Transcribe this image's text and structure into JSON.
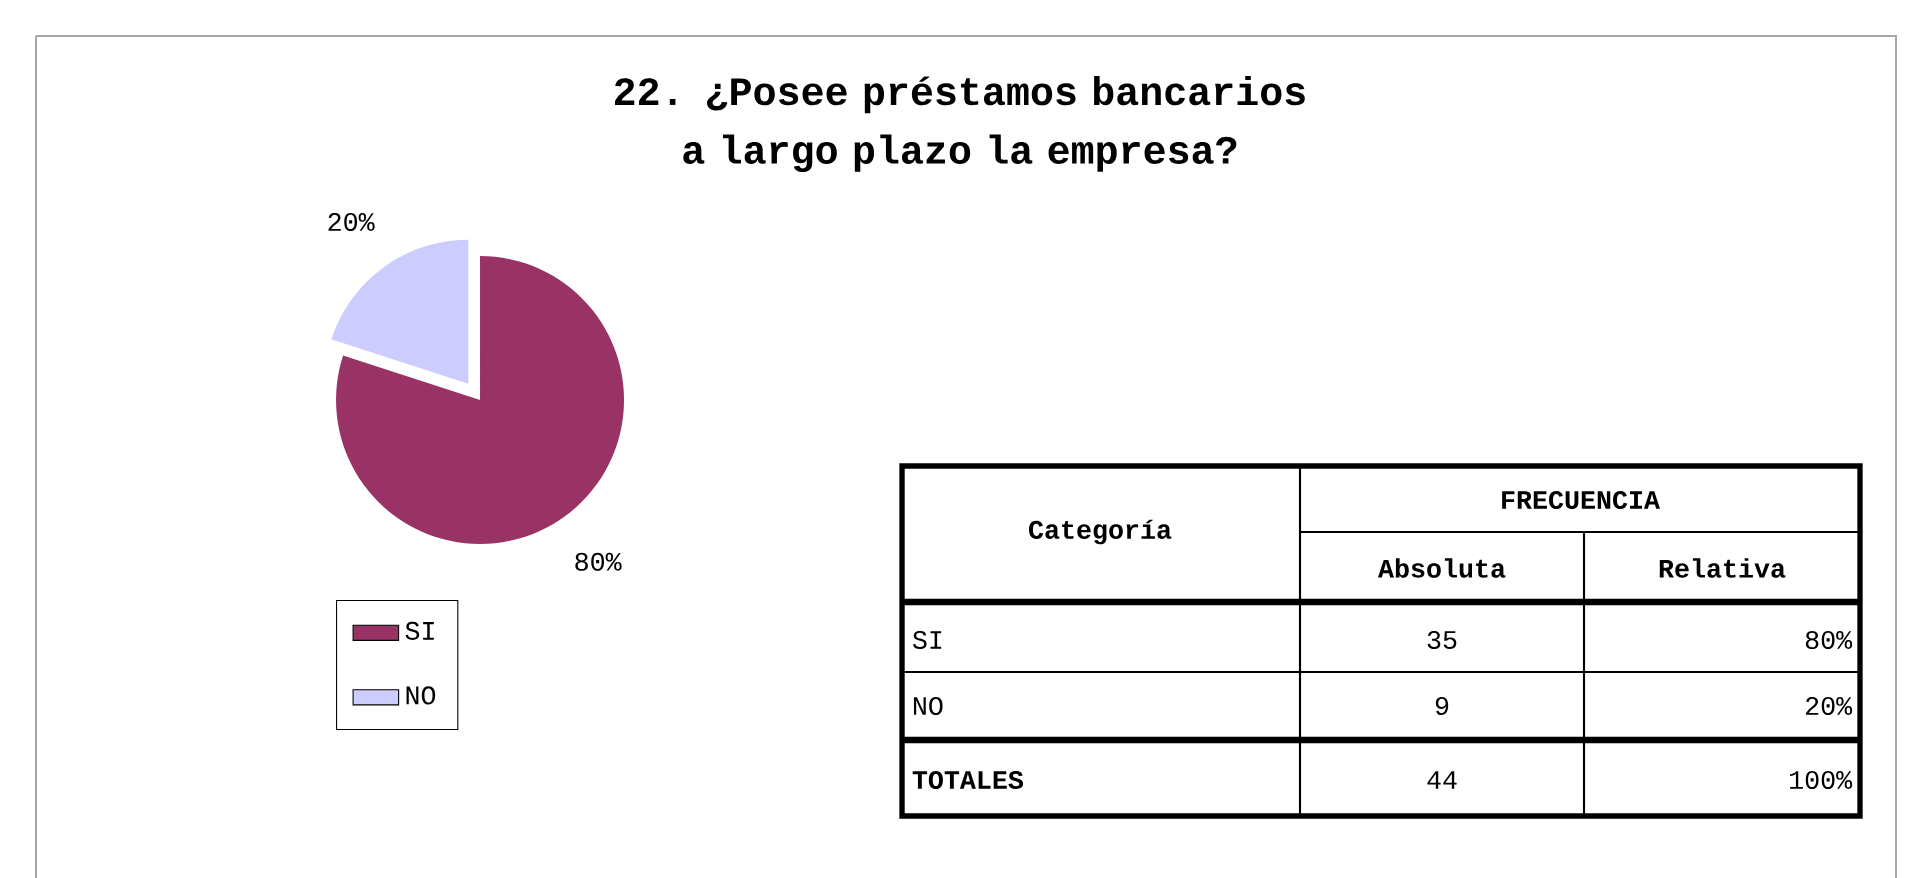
{
  "chart_data": {
    "type": "pie",
    "title": "22. ¿Posee préstamos bancarios a largo plazo la empresa?",
    "categories": [
      "SI",
      "NO"
    ],
    "values": [
      80,
      20
    ],
    "colors": [
      "#993366",
      "#ccccff"
    ],
    "value_labels": [
      "80%",
      "20%"
    ],
    "legend": "bottom left",
    "annotations": [
      "Categoría",
      "FRECUENCIA",
      "Absoluta",
      "Relativa",
      "35",
      "9",
      "TOTALES",
      "44",
      "100%"
    ]
  }
}
